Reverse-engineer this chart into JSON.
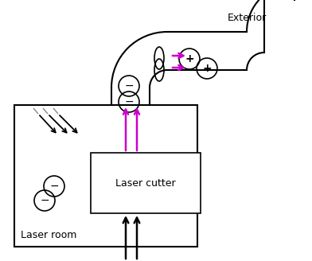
{
  "bg_color": "#ffffff",
  "blk": "#000000",
  "pur": "#cc00cc",
  "gray": "#888888",
  "room_label": "Laser room",
  "lc_label": "Laser cutter",
  "exterior_label": "Exterior",
  "minus_sign": "−",
  "plus_sign": "+"
}
